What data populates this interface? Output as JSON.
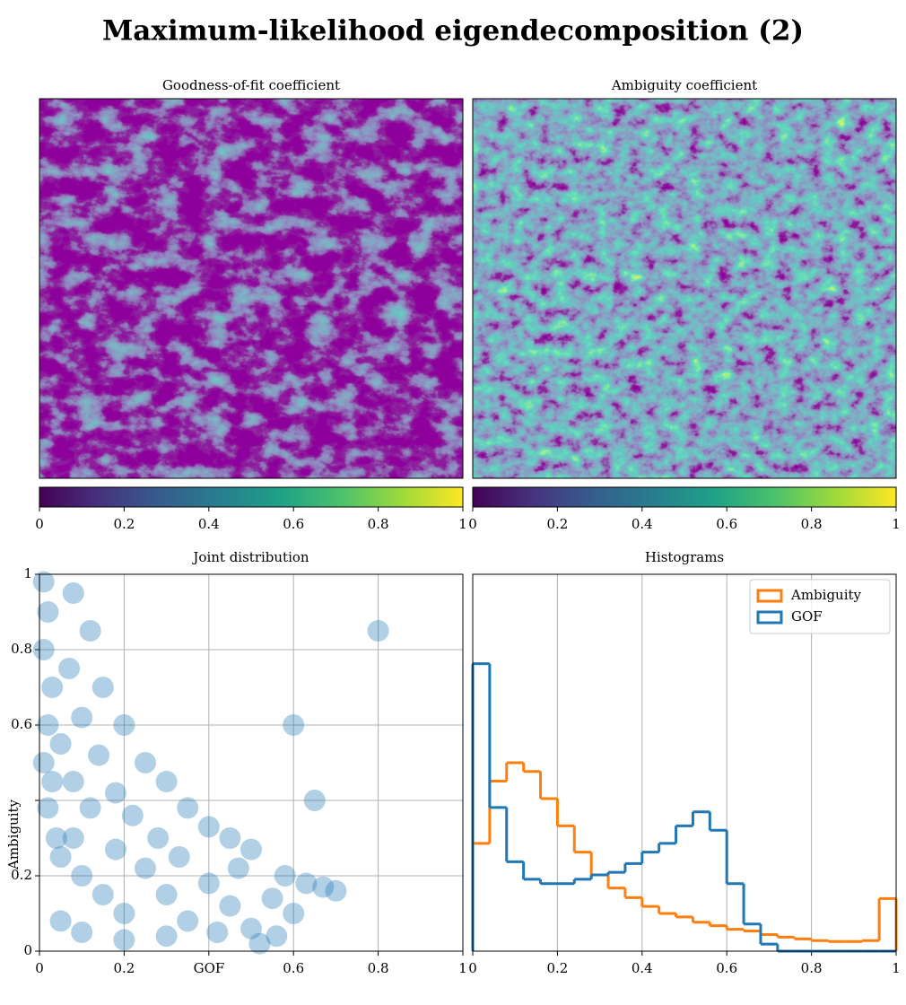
{
  "title": "Maximum-likelihood eigendecomposition (2)",
  "chart_data": [
    {
      "type": "image",
      "title": "Goodness-of-fit coefficient",
      "clim": [
        0,
        1
      ],
      "colorbar_ticks": [
        0,
        0.2,
        0.4,
        0.6,
        0.8,
        1
      ],
      "colormap": "viridis"
    },
    {
      "type": "image",
      "title": "Ambiguity coefficient",
      "clim": [
        0,
        1
      ],
      "colorbar_ticks": [
        0,
        0.2,
        0.4,
        0.6,
        0.8,
        1
      ],
      "colormap": "viridis"
    },
    {
      "type": "scatter",
      "title": "Joint distribution",
      "x_label": "GOF",
      "y_label": "Ambiguity",
      "color": "#1f77b4",
      "grid": true,
      "xlim": [
        0,
        1
      ],
      "ylim": [
        0,
        1
      ],
      "xticks": [
        0,
        0.2,
        {
          "value": 0.4,
          "label": null
        },
        0.6,
        0.8,
        1
      ],
      "yticks": [
        0,
        0.2,
        {
          "value": 0.4,
          "label": null
        },
        0.6,
        0.8,
        1
      ],
      "x": [
        0.01,
        0.02,
        0.01,
        0.03,
        0.02,
        0.01,
        0.03,
        0.02,
        0.04,
        0.08,
        0.12,
        0.07,
        0.15,
        0.1,
        0.2,
        0.05,
        0.14,
        0.25,
        0.08,
        0.18,
        0.3,
        0.12,
        0.22,
        0.35,
        0.4,
        0.28,
        0.45,
        0.5,
        0.05,
        0.1,
        0.15,
        0.2,
        0.25,
        0.3,
        0.35,
        0.4,
        0.45,
        0.5,
        0.55,
        0.58,
        0.52,
        0.6,
        0.63,
        0.67,
        0.7,
        0.05,
        0.1,
        0.2,
        0.3,
        0.42,
        0.08,
        0.18,
        0.33,
        0.47,
        0.56,
        0.6,
        0.8,
        0.65
      ],
      "y": [
        0.98,
        0.9,
        0.8,
        0.7,
        0.6,
        0.5,
        0.45,
        0.38,
        0.3,
        0.95,
        0.85,
        0.75,
        0.7,
        0.62,
        0.6,
        0.55,
        0.52,
        0.5,
        0.45,
        0.42,
        0.45,
        0.38,
        0.36,
        0.38,
        0.33,
        0.3,
        0.3,
        0.27,
        0.25,
        0.2,
        0.15,
        0.1,
        0.22,
        0.15,
        0.08,
        0.18,
        0.12,
        0.06,
        0.14,
        0.2,
        0.02,
        0.1,
        0.18,
        0.17,
        0.16,
        0.08,
        0.05,
        0.03,
        0.04,
        0.05,
        0.3,
        0.27,
        0.25,
        0.22,
        0.04,
        0.6,
        0.85,
        0.4
      ]
    },
    {
      "type": "histogram",
      "title": "Histograms",
      "grid": "x",
      "legend": "upper right",
      "xlim": [
        0,
        1
      ],
      "ylim": [
        0,
        4.3
      ],
      "xticks": [
        0,
        0.2,
        0.4,
        0.6,
        0.8,
        1
      ],
      "bins": [
        0,
        0.04,
        0.08,
        0.12,
        0.16,
        0.2,
        0.24,
        0.28,
        0.32,
        0.36,
        0.4,
        0.44,
        0.48,
        0.52,
        0.56,
        0.6,
        0.64,
        0.68,
        0.72,
        0.76,
        0.8,
        0.84,
        0.88,
        0.92,
        0.96,
        1
      ],
      "series": [
        {
          "name": "Ambiguity",
          "color": "#ff7f0e",
          "values": [
            1.23,
            1.94,
            2.15,
            2.05,
            1.74,
            1.43,
            1.13,
            0.87,
            0.72,
            0.61,
            0.51,
            0.43,
            0.39,
            0.33,
            0.29,
            0.25,
            0.23,
            0.19,
            0.16,
            0.14,
            0.12,
            0.11,
            0.11,
            0.12,
            0.6
          ]
        },
        {
          "name": "GOF",
          "color": "#1f77b4",
          "values": [
            3.28,
            1.64,
            1.02,
            0.82,
            0.77,
            0.77,
            0.82,
            0.87,
            0.9,
            1.0,
            1.13,
            1.23,
            1.43,
            1.59,
            1.38,
            0.77,
            0.31,
            0.08,
            0,
            0,
            0,
            0,
            0,
            0,
            0
          ]
        }
      ]
    }
  ]
}
